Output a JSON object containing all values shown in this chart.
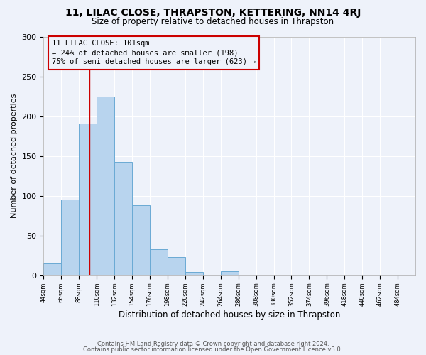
{
  "title": "11, LILAC CLOSE, THRAPSTON, KETTERING, NN14 4RJ",
  "subtitle": "Size of property relative to detached houses in Thrapston",
  "xlabel": "Distribution of detached houses by size in Thrapston",
  "ylabel": "Number of detached properties",
  "footer_line1": "Contains HM Land Registry data © Crown copyright and database right 2024.",
  "footer_line2": "Contains public sector information licensed under the Open Government Licence v3.0.",
  "bar_edges": [
    44,
    66,
    88,
    110,
    132,
    154,
    176,
    198,
    220,
    242,
    264,
    286,
    308,
    330,
    352,
    374,
    396,
    418,
    440,
    462,
    484
  ],
  "bar_heights": [
    15,
    95,
    191,
    225,
    143,
    88,
    33,
    23,
    4,
    0,
    5,
    0,
    1,
    0,
    0,
    0,
    0,
    0,
    0,
    1
  ],
  "bar_color": "#b8d4ee",
  "bar_edge_color": "#6aaad4",
  "vline_x": 101,
  "vline_color": "#cc0000",
  "annotation_box_color": "#cc0000",
  "annotation_text_line1": "11 LILAC CLOSE: 101sqm",
  "annotation_text_line2": "← 24% of detached houses are smaller (198)",
  "annotation_text_line3": "75% of semi-detached houses are larger (623) →",
  "ylim": [
    0,
    300
  ],
  "yticks": [
    0,
    50,
    100,
    150,
    200,
    250,
    300
  ],
  "bg_color": "#eef2fa",
  "tick_labels": [
    "44sqm",
    "66sqm",
    "88sqm",
    "110sqm",
    "132sqm",
    "154sqm",
    "176sqm",
    "198sqm",
    "220sqm",
    "242sqm",
    "264sqm",
    "286sqm",
    "308sqm",
    "330sqm",
    "352sqm",
    "374sqm",
    "396sqm",
    "418sqm",
    "440sqm",
    "462sqm",
    "484sqm"
  ]
}
